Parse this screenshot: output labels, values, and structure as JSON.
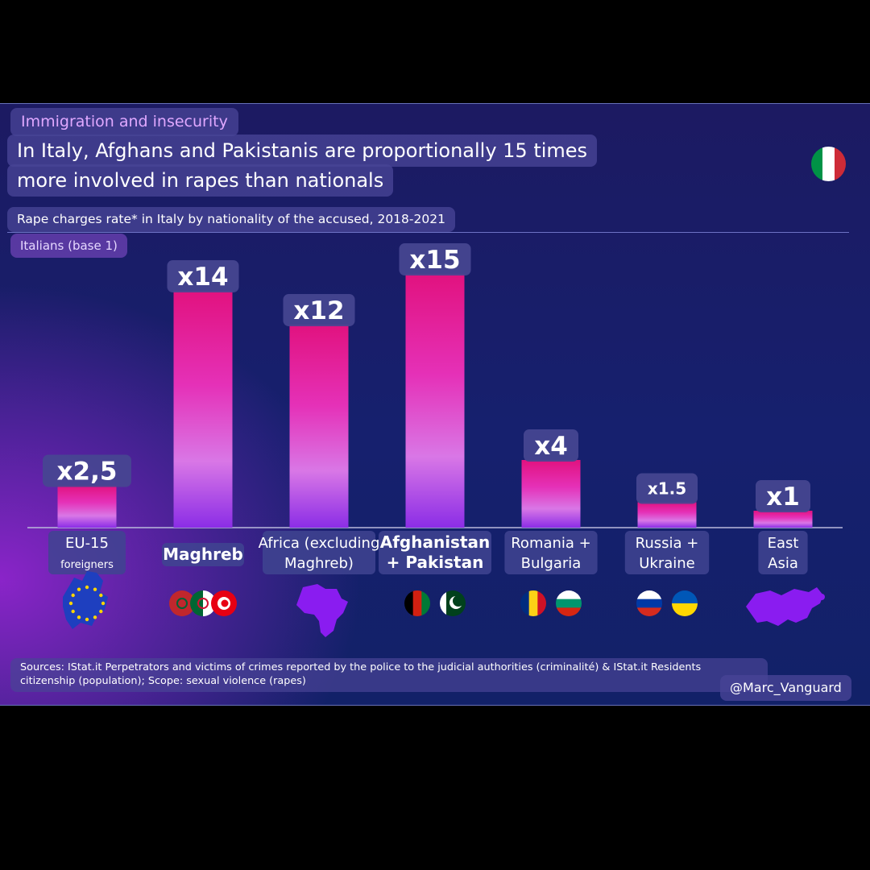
{
  "header": {
    "kicker": "Immigration and insecurity",
    "title_line_1": "In Italy, Afghans and Pakistanis are proportionally 15 times",
    "title_line_2": "more involved in rapes than nationals",
    "subtitle": "Rape charges rate* in Italy by nationality of the accused, 2018-2021",
    "base_note": "Italians (base 1)",
    "flag_icon": "italy-flag-icon",
    "flag_colors": [
      "#009246",
      "#ffffff",
      "#ce2b37"
    ]
  },
  "chart_data": {
    "type": "bar",
    "ylim": [
      0,
      15
    ],
    "categories": [
      {
        "lines": [
          "EU-15",
          "foreigners"
        ],
        "icon": "eu-flag-icon"
      },
      {
        "lines": [
          "Maghreb"
        ],
        "icon": "maghreb-flags-icon"
      },
      {
        "lines": [
          "Africa (excluding",
          "Maghreb)"
        ],
        "icon": "africa-map-icon"
      },
      {
        "lines": [
          "Afghanistan",
          "+ Pakistan"
        ],
        "icon": "afghanistan-pakistan-flags-icon"
      },
      {
        "lines": [
          "Romania +",
          "Bulgaria"
        ],
        "icon": "romania-bulgaria-flags-icon"
      },
      {
        "lines": [
          "Russia +",
          "Ukraine"
        ],
        "icon": "russia-ukraine-flags-icon"
      },
      {
        "lines": [
          "East",
          "Asia"
        ],
        "icon": "east-asia-map-icon"
      }
    ],
    "values": [
      2.5,
      14,
      12,
      15,
      4,
      1.5,
      1
    ],
    "value_labels": [
      "x2,5",
      "x14",
      "x12",
      "x15",
      "x4",
      "x1.5",
      "x1"
    ],
    "colors": {
      "bar_top": "#e1127f",
      "bar_bottom": "#8b2de6",
      "label_bg": "#464791"
    }
  },
  "footer": {
    "sources": "Sources: IStat.it Perpetrators and victims of crimes reported by the police to the judicial authorities (criminalité) & IStat.it Residents citizenship (population); Scope: sexual violence (rapes)",
    "handle": "@Marc_Vanguard"
  }
}
